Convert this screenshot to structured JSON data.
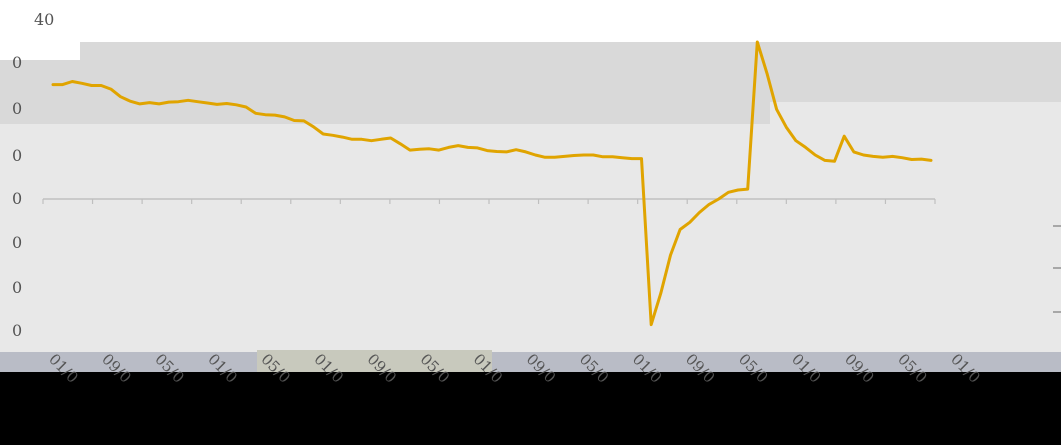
{
  "chart_data": {
    "type": "line",
    "title": "",
    "xlabel": "",
    "ylabel": "",
    "top_label": "40",
    "y_tick_labels": [
      "0",
      "0",
      "0",
      "0",
      "0",
      "0",
      "0"
    ],
    "ylim": [
      -30,
      35
    ],
    "x_tick_labels": [
      "01/0",
      "09/0",
      "05/0",
      "01/0",
      "05/0",
      "01/0",
      "09/0",
      "05/0",
      "01/0",
      "09/0",
      "05/0",
      "01/0",
      "09/0",
      "05/0",
      "01/0",
      "09/0",
      "05/0",
      "01/0"
    ],
    "colors": {
      "line": "#e0a400",
      "plot_bg": "#e8e8e8",
      "band_bg": "#d9d9d9",
      "zero_axis": "#bfbfbf"
    },
    "series": [
      {
        "values": [
          25.5,
          25.5,
          26.2,
          25.8,
          25.3,
          25.3,
          24.5,
          22.8,
          21.8,
          21.2,
          21.5,
          21.2,
          21.6,
          21.7,
          22.0,
          21.7,
          21.4,
          21.1,
          21.3,
          21.0,
          20.5,
          19.1,
          18.8,
          18.7,
          18.3,
          17.5,
          17.4,
          16.1,
          14.5,
          14.2,
          13.8,
          13.3,
          13.3,
          13.0,
          13.3,
          13.6,
          12.3,
          10.9,
          11.1,
          11.2,
          10.9,
          11.5,
          11.9,
          11.5,
          11.4,
          10.8,
          10.6,
          10.5,
          11.0,
          10.5,
          9.8,
          9.3,
          9.3,
          9.5,
          9.7,
          9.8,
          9.8,
          9.4,
          9.4,
          9.2,
          9.0,
          9.0,
          -28.0,
          -21.0,
          -12.5,
          -6.8,
          -5.2,
          -3.0,
          -1.2,
          0.0,
          1.5,
          2.0,
          2.2,
          35.0,
          28.0,
          20.0,
          16.0,
          13.0,
          11.5,
          9.8,
          8.6,
          8.4,
          14.0,
          10.5,
          9.8,
          9.5,
          9.3,
          9.5,
          9.2,
          8.8,
          8.9,
          8.6
        ]
      }
    ]
  }
}
